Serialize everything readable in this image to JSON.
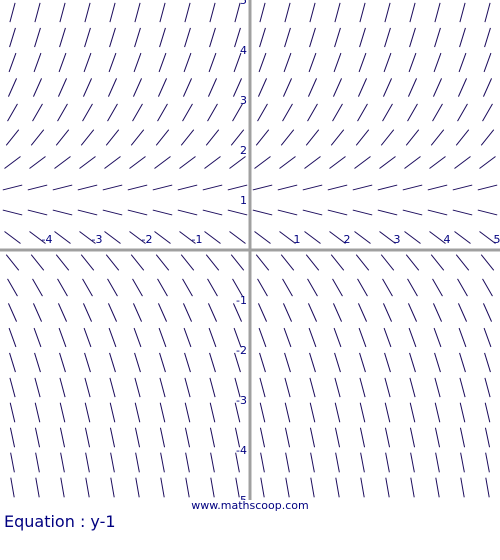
{
  "chart_data": {
    "type": "slope_field",
    "equation_label": "Equation : y-1",
    "slope_function": "y-1",
    "x_range": [
      -5,
      5
    ],
    "y_range": [
      -5,
      5
    ],
    "x_ticks": [
      -4,
      -3,
      -2,
      -1,
      1,
      2,
      3,
      4,
      5
    ],
    "y_ticks": [
      -5,
      -4,
      -3,
      -2,
      -1,
      1,
      2,
      3,
      4,
      5
    ],
    "x_tick_labels": [
      "-4",
      "-3",
      "-2",
      "-1",
      "1",
      "2",
      "3",
      "4",
      "5"
    ],
    "y_tick_labels": [
      "-5",
      "-4",
      "-3",
      "-2",
      "-1",
      "1",
      "2",
      "3",
      "4",
      "5"
    ],
    "grid": false,
    "colors": {
      "segments": "#1a0a5c",
      "axes": "#a0a0a0",
      "labels": "#000080"
    }
  },
  "watermark": "www.mathscoop.com"
}
